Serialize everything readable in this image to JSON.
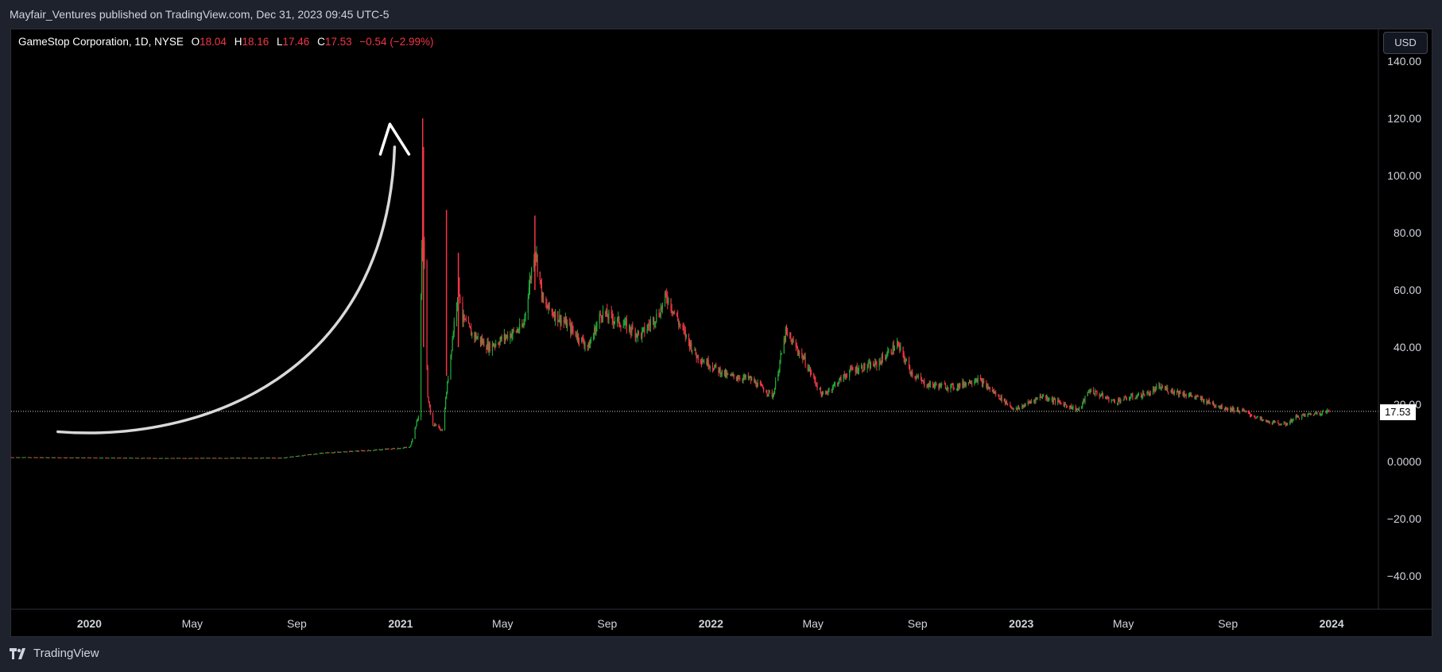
{
  "header": {
    "published_text": "Mayfair_Ventures published on TradingView.com, Dec 31, 2023 09:45 UTC-5"
  },
  "legend": {
    "symbol_text": "GameStop Corporation, 1D, NYSE",
    "open_label": "O",
    "open_value": "18.04",
    "high_label": "H",
    "high_value": "18.16",
    "low_label": "L",
    "low_value": "17.46",
    "close_label": "C",
    "close_value": "17.53",
    "change_text": "−0.54 (−2.99%)"
  },
  "currency_button": "USD",
  "last_price_tag": "17.53",
  "footer": {
    "brand": "TradingView",
    "logo_icon": "tradingview-logo-icon"
  },
  "colors": {
    "up": "#22ab3a",
    "down": "#f23645",
    "background": "#000000",
    "panel": "#1e222d",
    "axis_text": "#d1d4dc",
    "annotation": "#d9d9d9"
  },
  "chart_data": {
    "type": "candlestick",
    "symbol": "GameStop Corporation, 1D, NYSE",
    "ylim": [
      -50,
      142
    ],
    "y_ticks": [
      -40,
      -20,
      0,
      20,
      40,
      60,
      80,
      100,
      120,
      140
    ],
    "y_tick_labels": [
      "−40.00",
      "−20.00",
      "0.0000",
      "20.00",
      "40.00",
      "60.00",
      "80.00",
      "100.00",
      "120.00",
      "140.00"
    ],
    "x_range": [
      "2019-10-01",
      "2024-02-25"
    ],
    "x_ticks": [
      {
        "date": "2020-01-01",
        "label": "2020",
        "bold": true
      },
      {
        "date": "2020-05-01",
        "label": "May",
        "bold": false
      },
      {
        "date": "2020-09-01",
        "label": "Sep",
        "bold": false
      },
      {
        "date": "2021-01-01",
        "label": "2021",
        "bold": true
      },
      {
        "date": "2021-05-01",
        "label": "May",
        "bold": false
      },
      {
        "date": "2021-09-01",
        "label": "Sep",
        "bold": false
      },
      {
        "date": "2022-01-01",
        "label": "2022",
        "bold": true
      },
      {
        "date": "2022-05-01",
        "label": "May",
        "bold": false
      },
      {
        "date": "2022-09-01",
        "label": "Sep",
        "bold": false
      },
      {
        "date": "2023-01-01",
        "label": "2023",
        "bold": true
      },
      {
        "date": "2023-05-01",
        "label": "May",
        "bold": false
      },
      {
        "date": "2023-09-01",
        "label": "Sep",
        "bold": false
      },
      {
        "date": "2024-01-01",
        "label": "2024",
        "bold": true
      }
    ],
    "last_price": 17.53,
    "price_path": [
      [
        "2019-10-01",
        1.5
      ],
      [
        "2020-04-01",
        1.2
      ],
      [
        "2020-08-15",
        1.3
      ],
      [
        "2020-10-01",
        3.0
      ],
      [
        "2020-12-01",
        4.0
      ],
      [
        "2021-01-12",
        5.0
      ],
      [
        "2021-01-22",
        16.0
      ],
      [
        "2021-01-27",
        87.0
      ],
      [
        "2021-01-28",
        80.0
      ],
      [
        "2021-02-02",
        22.0
      ],
      [
        "2021-02-08",
        13.0
      ],
      [
        "2021-02-19",
        11.0
      ],
      [
        "2021-02-25",
        27.0
      ],
      [
        "2021-03-10",
        62.0
      ],
      [
        "2021-03-15",
        50.0
      ],
      [
        "2021-03-25",
        45.0
      ],
      [
        "2021-04-15",
        40.0
      ],
      [
        "2021-05-01",
        43.0
      ],
      [
        "2021-05-25",
        47.0
      ],
      [
        "2021-06-08",
        75.0
      ],
      [
        "2021-06-18",
        55.0
      ],
      [
        "2021-07-15",
        48.0
      ],
      [
        "2021-08-10",
        40.0
      ],
      [
        "2021-08-25",
        52.0
      ],
      [
        "2021-09-20",
        48.0
      ],
      [
        "2021-10-10",
        44.0
      ],
      [
        "2021-11-01",
        52.0
      ],
      [
        "2021-11-10",
        58.0
      ],
      [
        "2021-11-25",
        48.0
      ],
      [
        "2021-12-15",
        37.0
      ],
      [
        "2022-01-20",
        30.0
      ],
      [
        "2022-02-15",
        29.0
      ],
      [
        "2022-03-15",
        23.0
      ],
      [
        "2022-03-30",
        45.0
      ],
      [
        "2022-04-20",
        36.0
      ],
      [
        "2022-05-12",
        23.0
      ],
      [
        "2022-06-15",
        32.0
      ],
      [
        "2022-07-15",
        34.0
      ],
      [
        "2022-08-08",
        41.0
      ],
      [
        "2022-08-25",
        31.0
      ],
      [
        "2022-09-10",
        27.0
      ],
      [
        "2022-10-15",
        26.0
      ],
      [
        "2022-11-10",
        29.0
      ],
      [
        "2022-12-25",
        18.0
      ],
      [
        "2023-01-25",
        23.0
      ],
      [
        "2023-03-10",
        18.0
      ],
      [
        "2023-03-22",
        25.0
      ],
      [
        "2023-04-20",
        21.0
      ],
      [
        "2023-06-01",
        24.0
      ],
      [
        "2023-06-12",
        26.0
      ],
      [
        "2023-07-20",
        23.0
      ],
      [
        "2023-08-25",
        19.0
      ],
      [
        "2023-09-20",
        17.5
      ],
      [
        "2023-10-15",
        14.0
      ],
      [
        "2023-11-08",
        13.0
      ],
      [
        "2023-11-20",
        15.5
      ],
      [
        "2023-12-15",
        17.0
      ],
      [
        "2023-12-29",
        17.53
      ]
    ],
    "spikes": [
      {
        "date": "2021-01-27",
        "high": 120,
        "low": 70
      },
      {
        "date": "2021-01-28",
        "high": 110,
        "low": 40
      },
      {
        "date": "2021-02-24",
        "high": 88,
        "low": 30
      },
      {
        "date": "2021-03-10",
        "high": 73,
        "low": 40
      },
      {
        "date": "2021-06-08",
        "high": 86,
        "low": 60
      }
    ],
    "annotation": "hand-drawn-arrow"
  }
}
